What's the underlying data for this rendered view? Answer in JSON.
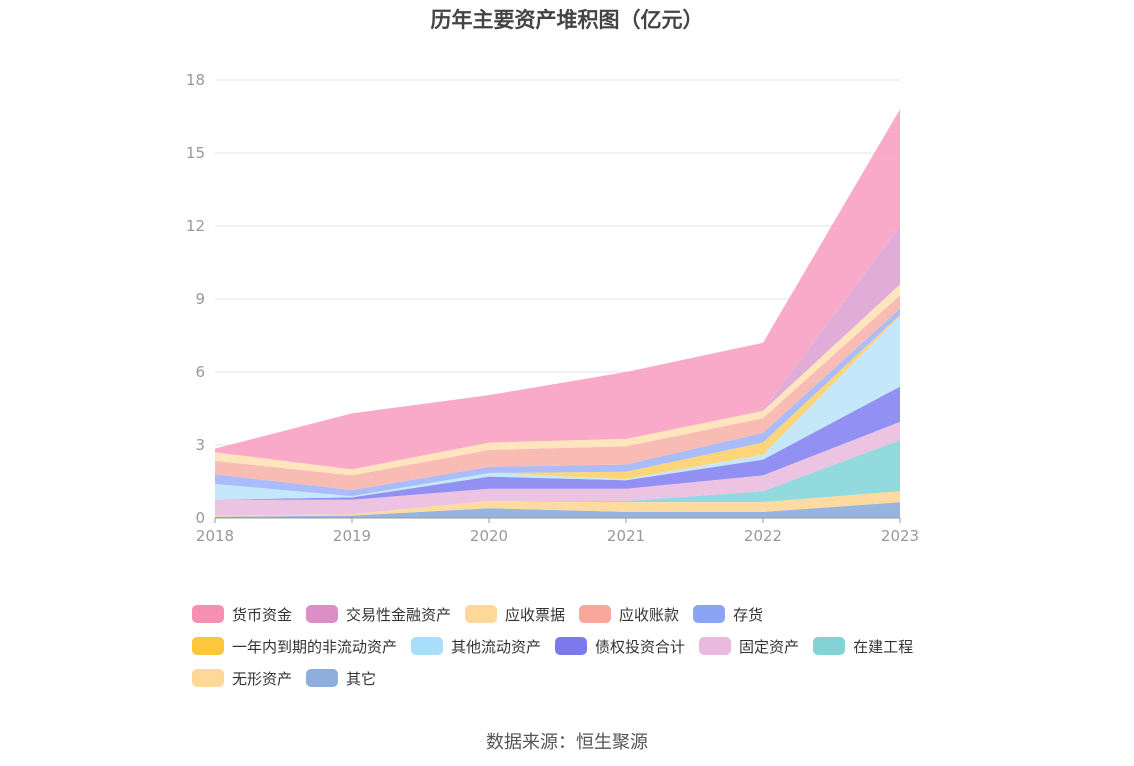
{
  "title": "历年主要资产堆积图（亿元）",
  "source": "数据来源：恒生聚源",
  "chart_data": {
    "type": "area",
    "stacked": true,
    "categories": [
      "2018",
      "2019",
      "2020",
      "2021",
      "2022",
      "2023"
    ],
    "ylim": [
      0,
      18
    ],
    "yticks": [
      0,
      3,
      6,
      9,
      12,
      15,
      18
    ],
    "grid": true,
    "legend_position": "bottom",
    "series": [
      {
        "name": "其它",
        "color": "#8eaedb",
        "values": [
          0.05,
          0.1,
          0.4,
          0.25,
          0.25,
          0.65
        ]
      },
      {
        "name": "无形资产",
        "color": "#ffd899",
        "values": [
          0.05,
          0.05,
          0.3,
          0.4,
          0.4,
          0.45
        ]
      },
      {
        "name": "在建工程",
        "color": "#8ad7db",
        "values": [
          0,
          0,
          0,
          0.05,
          0.45,
          2.1
        ]
      },
      {
        "name": "固定资产",
        "color": "#eabfdf",
        "values": [
          0.65,
          0.6,
          0.5,
          0.5,
          0.65,
          0.75
        ]
      },
      {
        "name": "债权投资合计",
        "color": "#8a87f2",
        "values": [
          0,
          0.1,
          0.5,
          0.35,
          0.65,
          1.45
        ]
      },
      {
        "name": "其他流动资产",
        "color": "#bfe6f8",
        "values": [
          0.65,
          0.05,
          0.15,
          0.05,
          0.2,
          2.9
        ]
      },
      {
        "name": "一年内到期的非流动资产",
        "color": "#ffd16f",
        "values": [
          0,
          0,
          0,
          0.3,
          0.5,
          0.05
        ]
      },
      {
        "name": "存货",
        "color": "#a3b6f8",
        "values": [
          0.4,
          0.25,
          0.25,
          0.3,
          0.4,
          0.25
        ]
      },
      {
        "name": "应收账款",
        "color": "#f9b6ae",
        "values": [
          0.55,
          0.6,
          0.7,
          0.75,
          0.6,
          0.55
        ]
      },
      {
        "name": "应收票据",
        "color": "#ffe3b8",
        "values": [
          0.35,
          0.25,
          0.3,
          0.3,
          0.3,
          0.45
        ]
      },
      {
        "name": "交易性金融资产",
        "color": "#dda6d6",
        "values": [
          0,
          0,
          0,
          0,
          0,
          2.4
        ]
      },
      {
        "name": "货币资金",
        "color": "#f8a3c4",
        "values": [
          0.15,
          2.3,
          1.95,
          2.75,
          2.8,
          4.8
        ]
      }
    ],
    "legend": [
      {
        "name": "货币资金",
        "color": "#f78fb3"
      },
      {
        "name": "交易性金融资产",
        "color": "#dc8fc7"
      },
      {
        "name": "应收票据",
        "color": "#ffd899"
      },
      {
        "name": "应收账款",
        "color": "#f9a79c"
      },
      {
        "name": "存货",
        "color": "#8aa5f5"
      },
      {
        "name": "一年内到期的非流动资产",
        "color": "#ffc53d"
      },
      {
        "name": "其他流动资产",
        "color": "#a8def9"
      },
      {
        "name": "债权投资合计",
        "color": "#7b79ed"
      },
      {
        "name": "固定资产",
        "color": "#e9b9de"
      },
      {
        "name": "在建工程",
        "color": "#82d2d6"
      },
      {
        "name": "无形资产",
        "color": "#ffd899"
      },
      {
        "name": "其它",
        "color": "#8eaedb"
      }
    ]
  }
}
